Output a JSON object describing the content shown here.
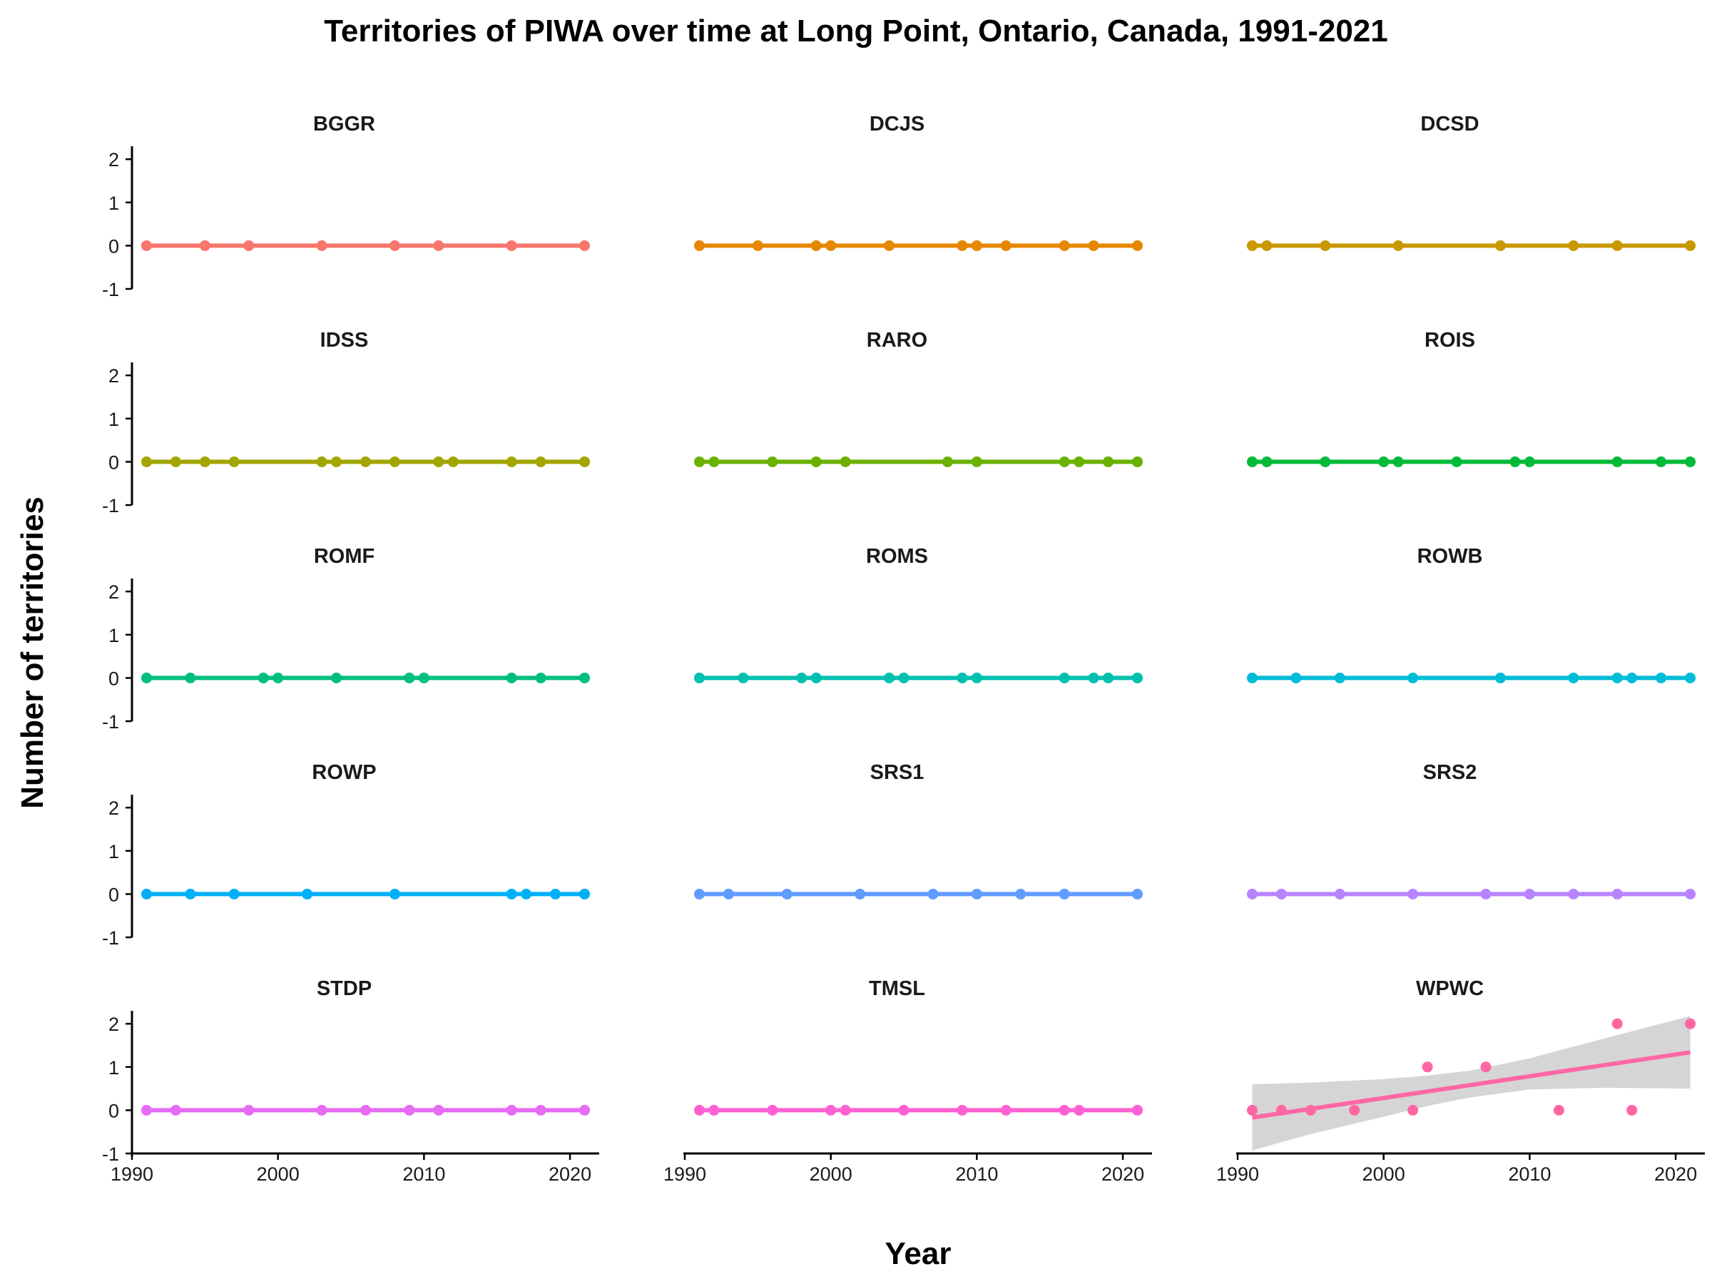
{
  "chart_data": {
    "type": "scatter",
    "title": "Territories of PIWA over time at Long Point, Ontario, Canada, 1991-2021",
    "xlabel": "Year",
    "ylabel": "Number of territories",
    "xlim": [
      1990,
      2022
    ],
    "ylim": [
      -1,
      2.3
    ],
    "x_ticks": [
      1990,
      2000,
      2010,
      2020
    ],
    "y_ticks": [
      -1,
      0,
      1,
      2
    ],
    "grid": false,
    "legend": "none",
    "layout": "facet grid, 5 rows x 3 columns, shared axes",
    "panels": [
      {
        "name": "BGGR",
        "color": "#F8766D",
        "x": [
          1991,
          1995,
          1998,
          2003,
          2008,
          2011,
          2016,
          2021
        ],
        "y": [
          0,
          0,
          0,
          0,
          0,
          0,
          0,
          0
        ],
        "fit": {
          "start": 0,
          "end": 0
        }
      },
      {
        "name": "DCJS",
        "color": "#E58700",
        "x": [
          1991,
          1995,
          1999,
          2000,
          2004,
          2009,
          2010,
          2012,
          2016,
          2018,
          2021
        ],
        "y": [
          0,
          0,
          0,
          0,
          0,
          0,
          0,
          0,
          0,
          0,
          0
        ],
        "fit": {
          "start": 0,
          "end": 0
        }
      },
      {
        "name": "DCSD",
        "color": "#C99800",
        "x": [
          1991,
          1992,
          1996,
          2001,
          2008,
          2013,
          2016,
          2021
        ],
        "y": [
          0,
          0,
          0,
          0,
          0,
          0,
          0,
          0
        ],
        "fit": {
          "start": 0,
          "end": 0
        }
      },
      {
        "name": "IDSS",
        "color": "#A3A500",
        "x": [
          1991,
          1993,
          1995,
          1997,
          2003,
          2004,
          2006,
          2008,
          2011,
          2012,
          2016,
          2018,
          2021
        ],
        "y": [
          0,
          0,
          0,
          0,
          0,
          0,
          0,
          0,
          0,
          0,
          0,
          0,
          0
        ],
        "fit": {
          "start": 0,
          "end": 0
        }
      },
      {
        "name": "RARO",
        "color": "#6BB100",
        "x": [
          1991,
          1992,
          1996,
          1999,
          2001,
          2008,
          2010,
          2016,
          2017,
          2019,
          2021
        ],
        "y": [
          0,
          0,
          0,
          0,
          0,
          0,
          0,
          0,
          0,
          0,
          0
        ],
        "fit": {
          "start": 0,
          "end": 0
        }
      },
      {
        "name": "ROIS",
        "color": "#00BA38",
        "x": [
          1991,
          1992,
          1996,
          2000,
          2001,
          2005,
          2009,
          2010,
          2016,
          2019,
          2021
        ],
        "y": [
          0,
          0,
          0,
          0,
          0,
          0,
          0,
          0,
          0,
          0,
          0
        ],
        "fit": {
          "start": 0,
          "end": 0
        }
      },
      {
        "name": "ROMF",
        "color": "#00BF7D",
        "x": [
          1991,
          1994,
          1999,
          2000,
          2004,
          2009,
          2010,
          2016,
          2018,
          2021
        ],
        "y": [
          0,
          0,
          0,
          0,
          0,
          0,
          0,
          0,
          0,
          0
        ],
        "fit": {
          "start": 0,
          "end": 0
        }
      },
      {
        "name": "ROMS",
        "color": "#00C0AF",
        "x": [
          1991,
          1994,
          1998,
          1999,
          2004,
          2005,
          2009,
          2010,
          2016,
          2018,
          2019,
          2021
        ],
        "y": [
          0,
          0,
          0,
          0,
          0,
          0,
          0,
          0,
          0,
          0,
          0,
          0
        ],
        "fit": {
          "start": 0,
          "end": 0
        }
      },
      {
        "name": "ROWB",
        "color": "#00BCD8",
        "x": [
          1991,
          1994,
          1997,
          2002,
          2008,
          2013,
          2016,
          2017,
          2019,
          2021
        ],
        "y": [
          0,
          0,
          0,
          0,
          0,
          0,
          0,
          0,
          0,
          0
        ],
        "fit": {
          "start": 0,
          "end": 0
        }
      },
      {
        "name": "ROWP",
        "color": "#00B0F6",
        "x": [
          1991,
          1994,
          1997,
          2002,
          2008,
          2016,
          2017,
          2019,
          2021
        ],
        "y": [
          0,
          0,
          0,
          0,
          0,
          0,
          0,
          0,
          0
        ],
        "fit": {
          "start": 0,
          "end": 0
        }
      },
      {
        "name": "SRS1",
        "color": "#619CFF",
        "x": [
          1991,
          1993,
          1997,
          2002,
          2007,
          2010,
          2013,
          2016,
          2021
        ],
        "y": [
          0,
          0,
          0,
          0,
          0,
          0,
          0,
          0,
          0
        ],
        "fit": {
          "start": 0,
          "end": 0
        }
      },
      {
        "name": "SRS2",
        "color": "#B983FF",
        "x": [
          1991,
          1993,
          1997,
          2002,
          2007,
          2010,
          2013,
          2016,
          2021
        ],
        "y": [
          0,
          0,
          0,
          0,
          0,
          0,
          0,
          0,
          0
        ],
        "fit": {
          "start": 0,
          "end": 0
        }
      },
      {
        "name": "STDP",
        "color": "#E76BF3",
        "x": [
          1991,
          1993,
          1998,
          2003,
          2006,
          2009,
          2011,
          2016,
          2018,
          2021
        ],
        "y": [
          0,
          0,
          0,
          0,
          0,
          0,
          0,
          0,
          0,
          0
        ],
        "fit": {
          "start": 0,
          "end": 0
        }
      },
      {
        "name": "TMSL",
        "color": "#FD61D1",
        "x": [
          1991,
          1992,
          1996,
          2000,
          2001,
          2005,
          2009,
          2012,
          2016,
          2017,
          2021
        ],
        "y": [
          0,
          0,
          0,
          0,
          0,
          0,
          0,
          0,
          0,
          0,
          0
        ],
        "fit": {
          "start": 0,
          "end": 0
        }
      },
      {
        "name": "WPWC",
        "color": "#FF67A4",
        "x": [
          1991,
          1993,
          1995,
          1998,
          2002,
          2003,
          2007,
          2012,
          2016,
          2017,
          2021
        ],
        "y": [
          0,
          0,
          0,
          0,
          0,
          1,
          1,
          0,
          2,
          0,
          2
        ],
        "fit": {
          "start": -0.17,
          "end": 1.34
        },
        "ci": [
          [
            1991,
            -0.93,
            0.6
          ],
          [
            1995,
            -0.55,
            0.64
          ],
          [
            2000,
            -0.15,
            0.72
          ],
          [
            2003,
            0.1,
            0.8
          ],
          [
            2006,
            0.3,
            0.92
          ],
          [
            2010,
            0.48,
            1.2
          ],
          [
            2015,
            0.52,
            1.65
          ],
          [
            2021,
            0.5,
            2.18
          ]
        ],
        "ci_color": "#D3D3D3"
      }
    ]
  }
}
